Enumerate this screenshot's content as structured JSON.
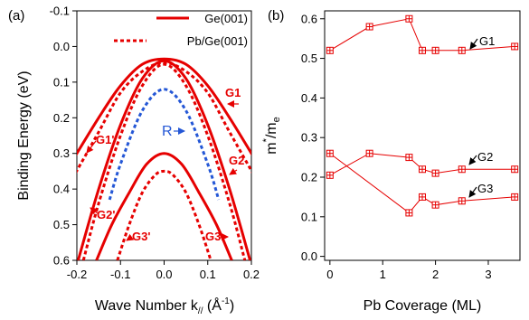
{
  "chart_data": [
    {
      "panel": "(a)",
      "type": "line",
      "xlabel": "Wave Number k",
      "xlabel_sub": "//",
      "xlabel_unit_open": " (Å",
      "xlabel_unit_sup": "-1",
      "xlabel_unit_close": ")",
      "ylabel": "Binding Energy (eV)",
      "xlim": [
        -0.2,
        0.2
      ],
      "ylim": [
        0.6,
        -0.1
      ],
      "y_inverted": true,
      "xticks": [
        "-0.2",
        "-0.1",
        "0.0",
        "0.1",
        "0.2"
      ],
      "yticks": [
        "-0.1",
        "0.0",
        "0.1",
        "0.2",
        "0.3",
        "0.4",
        "0.5",
        "0.6"
      ],
      "legend": {
        "placement": "top-right",
        "items": [
          {
            "label": "Ge(001)",
            "style": "solid",
            "color": "#e60000"
          },
          {
            "label": "Pb/Ge(001)",
            "style": "dotted",
            "color": "#e60000"
          }
        ]
      },
      "series": [
        {
          "name": "G1",
          "legend": "Ge(001)",
          "style": "solid",
          "color": "#e60000",
          "x": [
            -0.21,
            -0.15,
            -0.1,
            -0.05,
            0.0,
            0.05,
            0.1,
            0.15,
            0.21
          ],
          "y": [
            0.32,
            0.2,
            0.11,
            0.05,
            0.035,
            0.05,
            0.11,
            0.2,
            0.32
          ]
        },
        {
          "name": "G1'",
          "legend": "Pb/Ge(001)",
          "style": "dotted",
          "color": "#e60000",
          "x": [
            -0.21,
            -0.15,
            -0.1,
            -0.05,
            0.0,
            0.05,
            0.1,
            0.15,
            0.21
          ],
          "y": [
            0.37,
            0.24,
            0.13,
            0.07,
            0.045,
            0.07,
            0.13,
            0.24,
            0.37
          ]
        },
        {
          "name": "G2",
          "legend": "Ge(001)",
          "style": "solid",
          "color": "#e60000",
          "x": [
            -0.197,
            -0.15,
            -0.1,
            -0.05,
            0.0,
            0.05,
            0.1,
            0.15,
            0.197
          ],
          "y": [
            0.6,
            0.4,
            0.22,
            0.09,
            0.04,
            0.09,
            0.22,
            0.4,
            0.6
          ]
        },
        {
          "name": "G2'",
          "legend": "Pb/Ge(001)",
          "style": "dotted",
          "color": "#e60000",
          "x": [
            -0.185,
            -0.15,
            -0.1,
            -0.05,
            0.0,
            0.05,
            0.1,
            0.15,
            0.185
          ],
          "y": [
            0.6,
            0.44,
            0.25,
            0.11,
            0.05,
            0.11,
            0.25,
            0.44,
            0.6
          ]
        },
        {
          "name": "R",
          "style": "dotted",
          "color": "#2457d6",
          "x": [
            -0.125,
            -0.1,
            -0.05,
            0.0,
            0.05,
            0.1,
            0.125
          ],
          "y": [
            0.43,
            0.33,
            0.18,
            0.12,
            0.18,
            0.33,
            0.43
          ]
        },
        {
          "name": "G3",
          "legend": "Ge(001)",
          "style": "solid",
          "color": "#e60000",
          "x": [
            -0.155,
            -0.12,
            -0.08,
            -0.04,
            0.0,
            0.04,
            0.08,
            0.12,
            0.155
          ],
          "y": [
            0.6,
            0.5,
            0.41,
            0.33,
            0.3,
            0.33,
            0.41,
            0.5,
            0.6
          ]
        },
        {
          "name": "G3'",
          "legend": "Pb/Ge(001)",
          "style": "dotted",
          "color": "#e60000",
          "x": [
            -0.107,
            -0.08,
            -0.05,
            -0.02,
            0.0,
            0.02,
            0.05,
            0.08,
            0.107
          ],
          "y": [
            0.6,
            0.5,
            0.41,
            0.36,
            0.35,
            0.36,
            0.41,
            0.5,
            0.6
          ]
        }
      ],
      "annotations": [
        {
          "text": "G1",
          "color": "#e60000"
        },
        {
          "text": "G1'",
          "color": "#e60000"
        },
        {
          "text": "G2",
          "color": "#e60000"
        },
        {
          "text": "G2'",
          "color": "#e60000"
        },
        {
          "text": "G3",
          "color": "#e60000"
        },
        {
          "text": "G3'",
          "color": "#e60000"
        },
        {
          "text": "R",
          "color": "#2457d6"
        }
      ]
    },
    {
      "panel": "(b)",
      "type": "line",
      "xlabel": "Pb Coverage (ML)",
      "ylabel_m": "m",
      "ylabel_sup": "*",
      "ylabel_sep": "/m",
      "ylabel_sub": "e",
      "xlim": [
        -0.1,
        3.6
      ],
      "ylim": [
        -0.01,
        0.62
      ],
      "xticks": [
        "0",
        "1",
        "2",
        "3"
      ],
      "yticks": [
        "0.0",
        "0.1",
        "0.2",
        "0.3",
        "0.4",
        "0.5",
        "0.6"
      ],
      "grid": false,
      "marker": "open-square-crosshair",
      "color": "#e60000",
      "series": [
        {
          "name": "G1",
          "x": [
            0,
            0.75,
            1.5,
            1.75,
            2.0,
            2.5,
            3.5
          ],
          "y": [
            0.52,
            0.58,
            0.6,
            0.52,
            0.52,
            0.52,
            0.53
          ]
        },
        {
          "name": "G2",
          "x": [
            0,
            0.75,
            1.5,
            1.75,
            2.0,
            2.5,
            3.5
          ],
          "y": [
            0.205,
            0.26,
            0.25,
            0.22,
            0.21,
            0.22,
            0.22
          ]
        },
        {
          "name": "G3",
          "x": [
            0,
            1.5,
            1.75,
            2.0,
            2.5,
            3.5
          ],
          "y": [
            0.26,
            0.11,
            0.15,
            0.13,
            0.14,
            0.15
          ]
        }
      ]
    }
  ]
}
